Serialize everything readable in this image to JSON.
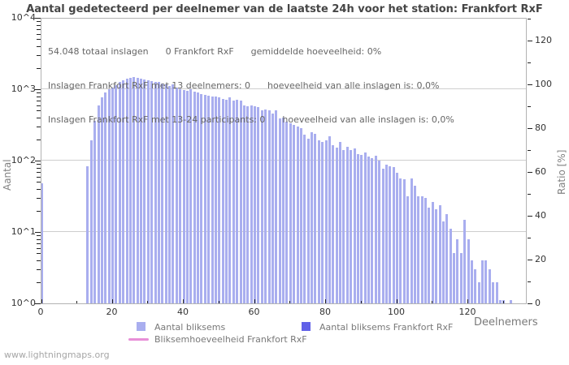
{
  "page": {
    "watermark": "www.lightningmaps.org"
  },
  "chart": {
    "title": "Aantal gedetecteerd per deelnemer van de laatste 24h voor het station: Frankfort RxF",
    "annotation_lines": [
      "54.048 totaal inslagen      0 Frankfort RxF      gemiddelde hoeveelheid: 0%",
      "Inslagen Frankfort RxF met 13 deelnemers: 0      hoeveelheid van alle inslagen is: 0,0%",
      "Inslagen Frankfort RxF met 13-24 participants: 0      hoeveelheid van alle inslagen is: 0,0%"
    ],
    "x_axis_title": "Deelnemers",
    "y_left_title": "Aantal",
    "y_right_title": "Ratio [%]",
    "legend": [
      {
        "swatch": "square",
        "color": "#a9aeef",
        "label": "Aantal bliksems"
      },
      {
        "swatch": "square",
        "color": "#6161e8",
        "label": "Aantal bliksems Frankfort RxF"
      },
      {
        "swatch": "line",
        "color": "#e88fd7",
        "label": "Bliksemhoeveelheid Frankfort RxF"
      }
    ],
    "colors": {
      "bar": "#a9aeef",
      "station_bar": "#6161e8",
      "ratio_line": "#e88fd7",
      "grid": "#cecece",
      "plot_border": "#b3b3b3"
    }
  },
  "chart_data": {
    "type": "bar",
    "title": "Aantal gedetecteerd per deelnemer van de laatste 24h voor het station: Frankfort RxF",
    "xlabel": "Deelnemers",
    "ylabel": "Aantal",
    "ylabel_right": "Ratio [%]",
    "x_range": [
      0,
      136
    ],
    "x_major_ticks": [
      0,
      20,
      40,
      60,
      80,
      100,
      120
    ],
    "x_minor_ticks": [
      10,
      30,
      50,
      70,
      90,
      110,
      130
    ],
    "y_left_scale": "log",
    "y_left_tick_labels": [
      "10^0",
      "10^1",
      "10^2",
      "10^3",
      "10^4"
    ],
    "y_right_range": [
      0,
      130
    ],
    "y_right_major_ticks": [
      0,
      20,
      40,
      60,
      80,
      100,
      120
    ],
    "y_right_minor_ticks": [
      10,
      30,
      50,
      70,
      90,
      110,
      130
    ],
    "grid": "horizontal-log-decades",
    "legend_position": "bottom",
    "series": [
      {
        "name": "Aantal bliksems",
        "role": "bars",
        "points": [
          [
            0,
            48
          ],
          [
            13,
            83
          ],
          [
            14,
            190
          ],
          [
            15,
            360
          ],
          [
            16,
            600
          ],
          [
            17,
            760
          ],
          [
            18,
            890
          ],
          [
            19,
            990
          ],
          [
            20,
            1060
          ],
          [
            21,
            1150
          ],
          [
            22,
            1250
          ],
          [
            23,
            1320
          ],
          [
            24,
            1400
          ],
          [
            25,
            1450
          ],
          [
            26,
            1480
          ],
          [
            27,
            1430
          ],
          [
            28,
            1390
          ],
          [
            29,
            1370
          ],
          [
            30,
            1340
          ],
          [
            31,
            1300
          ],
          [
            32,
            1280
          ],
          [
            33,
            1250
          ],
          [
            34,
            1210
          ],
          [
            35,
            1160
          ],
          [
            36,
            1120
          ],
          [
            37,
            1180
          ],
          [
            38,
            1060
          ],
          [
            39,
            1010
          ],
          [
            40,
            980
          ],
          [
            41,
            950
          ],
          [
            42,
            1000
          ],
          [
            43,
            920
          ],
          [
            44,
            890
          ],
          [
            45,
            860
          ],
          [
            46,
            830
          ],
          [
            47,
            810
          ],
          [
            48,
            780
          ],
          [
            49,
            800
          ],
          [
            50,
            760
          ],
          [
            51,
            730
          ],
          [
            52,
            710
          ],
          [
            53,
            760
          ],
          [
            54,
            700
          ],
          [
            55,
            720
          ],
          [
            56,
            690
          ],
          [
            57,
            600
          ],
          [
            58,
            580
          ],
          [
            59,
            600
          ],
          [
            60,
            580
          ],
          [
            61,
            565
          ],
          [
            62,
            510
          ],
          [
            63,
            520
          ],
          [
            64,
            500
          ],
          [
            65,
            460
          ],
          [
            66,
            500
          ],
          [
            67,
            390
          ],
          [
            68,
            400
          ],
          [
            69,
            350
          ],
          [
            70,
            335
          ],
          [
            71,
            320
          ],
          [
            72,
            300
          ],
          [
            73,
            287
          ],
          [
            74,
            232
          ],
          [
            75,
            204
          ],
          [
            76,
            250
          ],
          [
            77,
            237
          ],
          [
            78,
            193
          ],
          [
            79,
            184
          ],
          [
            80,
            193
          ],
          [
            81,
            220
          ],
          [
            82,
            165
          ],
          [
            83,
            152
          ],
          [
            84,
            184
          ],
          [
            85,
            140
          ],
          [
            86,
            156
          ],
          [
            87,
            140
          ],
          [
            88,
            148
          ],
          [
            89,
            123
          ],
          [
            90,
            120
          ],
          [
            91,
            130
          ],
          [
            92,
            114
          ],
          [
            93,
            108
          ],
          [
            94,
            117
          ],
          [
            95,
            100
          ],
          [
            96,
            77
          ],
          [
            97,
            88
          ],
          [
            98,
            83
          ],
          [
            99,
            81
          ],
          [
            100,
            67
          ],
          [
            101,
            56
          ],
          [
            102,
            55
          ],
          [
            103,
            32
          ],
          [
            104,
            56
          ],
          [
            105,
            45
          ],
          [
            106,
            32
          ],
          [
            107,
            32
          ],
          [
            108,
            30
          ],
          [
            109,
            22
          ],
          [
            110,
            26
          ],
          [
            111,
            21
          ],
          [
            112,
            24
          ],
          [
            113,
            14
          ],
          [
            114,
            18
          ],
          [
            115,
            11
          ],
          [
            116,
            5
          ],
          [
            117,
            8
          ],
          [
            118,
            5
          ],
          [
            119,
            15
          ],
          [
            120,
            8
          ],
          [
            121,
            4
          ],
          [
            122,
            3
          ],
          [
            123,
            2
          ],
          [
            124,
            4
          ],
          [
            125,
            4
          ],
          [
            126,
            3
          ],
          [
            127,
            2
          ],
          [
            128,
            2
          ],
          [
            129,
            1
          ],
          [
            130,
            1
          ],
          [
            132,
            1
          ]
        ]
      },
      {
        "name": "Aantal bliksems Frankfort RxF",
        "role": "bars",
        "points": []
      },
      {
        "name": "Bliksemhoeveelheid Frankfort RxF",
        "role": "line",
        "points": []
      }
    ]
  }
}
